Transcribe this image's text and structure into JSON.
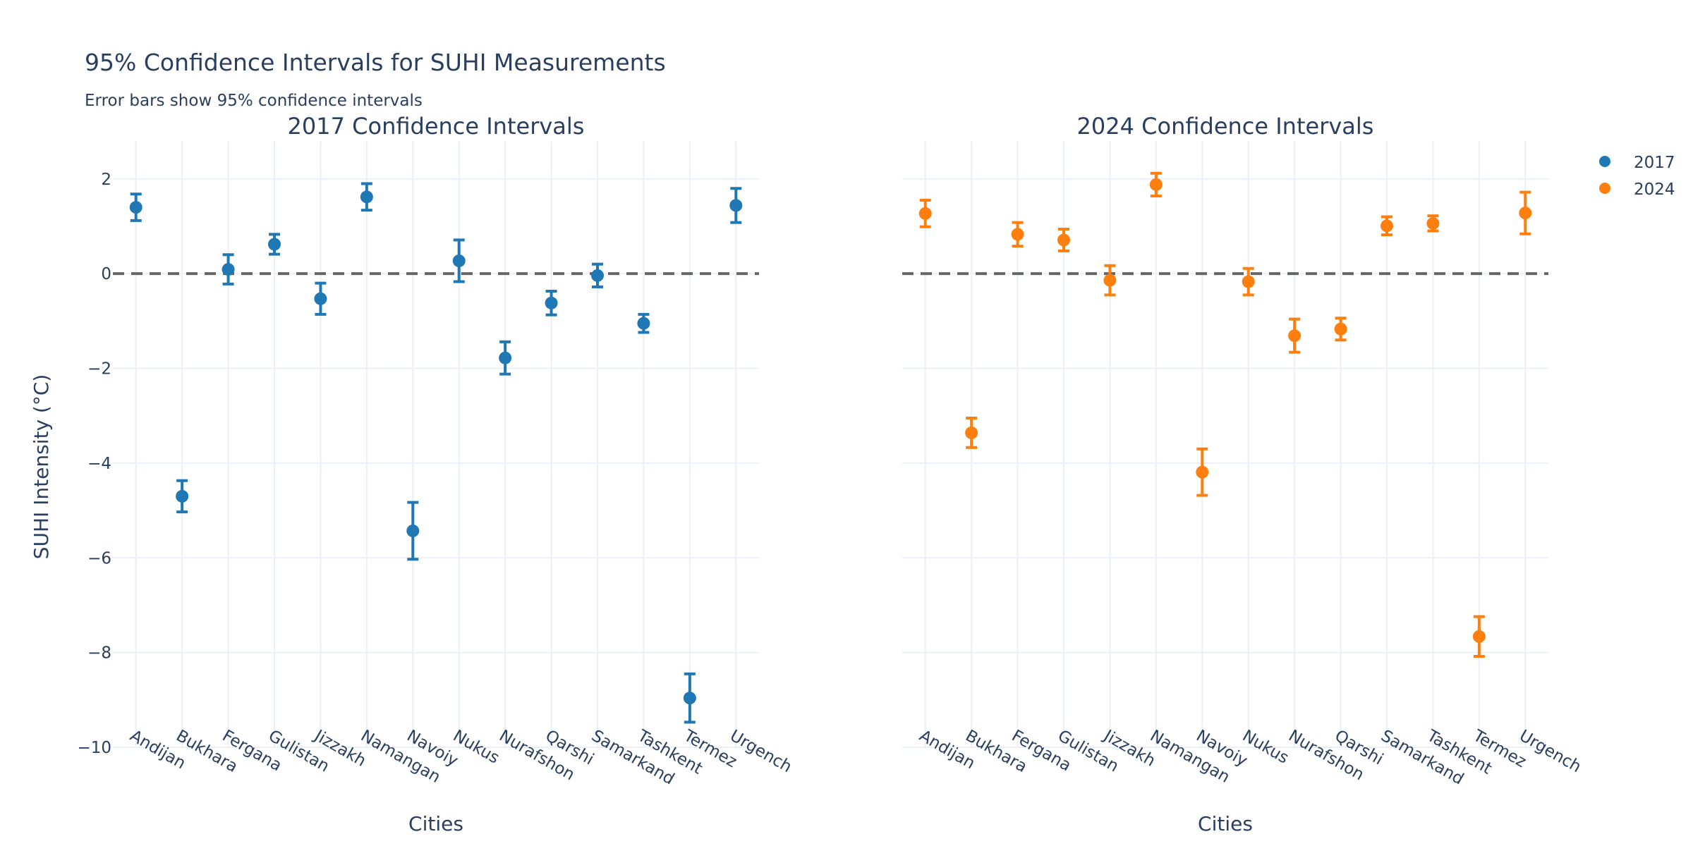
{
  "chart_data": {
    "type": "scatter",
    "title": "95% Confidence Intervals for SUHI Measurements",
    "subtitle": "Error bars show 95% confidence intervals",
    "ylabel": "SUHI Intensity (°C)",
    "ylim": [
      -10,
      2.8
    ],
    "yticks": [
      2,
      0,
      -2,
      -4,
      -6,
      -8,
      -10
    ],
    "ytick_labels": [
      "2",
      "0",
      "−2",
      "−4",
      "−6",
      "−8",
      "−10"
    ],
    "reference_line": 0,
    "grid": true,
    "legend_placement": "top-right",
    "categories": [
      "Andijan",
      "Bukhara",
      "Fergana",
      "Gulistan",
      "Jizzakh",
      "Namangan",
      "Navoiy",
      "Nukus",
      "Nurafshon",
      "Qarshi",
      "Samarkand",
      "Tashkent",
      "Termez",
      "Urgench"
    ],
    "panels": [
      {
        "title": "2017 Confidence Intervals",
        "xlabel": "Cities",
        "series": {
          "name": "2017",
          "color": "#1f77b4",
          "values": [
            1.4,
            -4.7,
            0.09,
            0.62,
            -0.53,
            1.62,
            -5.43,
            0.27,
            -1.78,
            -0.62,
            -0.04,
            -1.05,
            -8.96,
            1.44
          ],
          "lower": [
            1.12,
            -5.03,
            -0.22,
            0.41,
            -0.86,
            1.34,
            -6.03,
            -0.17,
            -2.12,
            -0.87,
            -0.28,
            -1.24,
            -9.47,
            1.08
          ],
          "upper": [
            1.68,
            -4.37,
            0.4,
            0.83,
            -0.2,
            1.9,
            -4.83,
            0.71,
            -1.44,
            -0.37,
            0.2,
            -0.86,
            -8.45,
            1.8
          ]
        }
      },
      {
        "title": "2024 Confidence Intervals",
        "xlabel": "Cities",
        "series": {
          "name": "2024",
          "color": "#ff7f0e",
          "values": [
            1.27,
            -3.36,
            0.83,
            0.71,
            -0.14,
            1.88,
            -4.19,
            -0.17,
            -1.31,
            -1.17,
            1.01,
            1.06,
            -7.66,
            1.28
          ],
          "lower": [
            0.99,
            -3.67,
            0.58,
            0.48,
            -0.45,
            1.64,
            -4.68,
            -0.45,
            -1.66,
            -1.4,
            0.82,
            0.9,
            -8.08,
            0.84
          ],
          "upper": [
            1.55,
            -3.05,
            1.08,
            0.94,
            0.17,
            2.12,
            -3.7,
            0.11,
            -0.96,
            -0.94,
            1.2,
            1.22,
            -7.24,
            1.72
          ]
        }
      }
    ]
  }
}
